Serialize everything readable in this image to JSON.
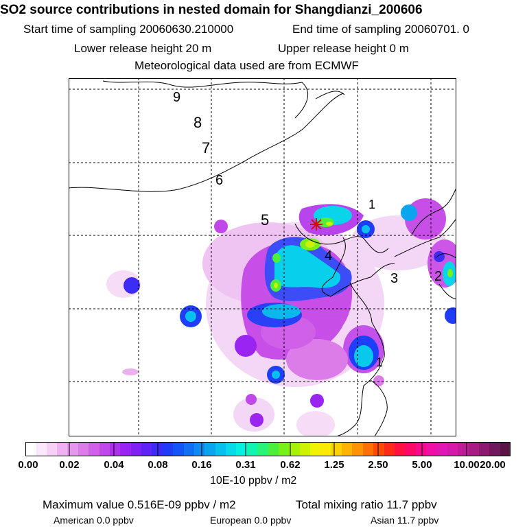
{
  "header": {
    "title": "SO2 source contributions in nested domain for Shangdianzi_200606",
    "start_time": "Start time of sampling 20060630.210000",
    "end_time": "End time of sampling 20060701.     0",
    "lower_release": "Lower release height   20 m",
    "upper_release": "Upper release height    0 m",
    "met_data": "Meteorological data used are from ECMWF"
  },
  "map": {
    "day_labels": [
      "9",
      "8",
      "7",
      "6",
      "5",
      "4",
      "3",
      "2",
      "1",
      "1"
    ],
    "receptor_symbol": "*"
  },
  "colorbar": {
    "colors": [
      "#ffffff",
      "#fbe8fb",
      "#f6d0f6",
      "#efb2f0",
      "#e597ec",
      "#dc7ce9",
      "#d060e8",
      "#c048ea",
      "#b030f0",
      "#9a24f2",
      "#7e22f4",
      "#5d24f5",
      "#3c2cf6",
      "#203cf7",
      "#1456f5",
      "#0f70f2",
      "#0e8af0",
      "#0aa4ef",
      "#08c0ee",
      "#08daea",
      "#06f0e0",
      "#10f6b0",
      "#28f478",
      "#4cf03c",
      "#7af01a",
      "#a6f00a",
      "#cef204",
      "#f0f404",
      "#faea04",
      "#fcd004",
      "#fdb404",
      "#fe9404",
      "#fe7004",
      "#fe4c08",
      "#fe2a18",
      "#fe1040",
      "#fc0868",
      "#f80a8c",
      "#f010a8",
      "#e216b4",
      "#d41aaa",
      "#c01c98",
      "#a81c84",
      "#8e1a70",
      "#72185c",
      "#5a1448"
    ],
    "tick_labels": [
      "0.00",
      "0.02",
      "0.04",
      "0.08",
      "0.16",
      "0.31",
      "0.62",
      "1.25",
      "2.50",
      "5.00",
      "10.00",
      "20.00"
    ],
    "units": "10E-10 ppbv / m2"
  },
  "footer": {
    "max_value": "Maximum value  0.516E-09 ppbv / m2",
    "total_mixing": "Total mixing ratio      11.7 ppbv",
    "american": "American       0.0 ppbv",
    "european": "European       0.0 ppbv",
    "asian": "Asian      11.7 ppbv"
  }
}
